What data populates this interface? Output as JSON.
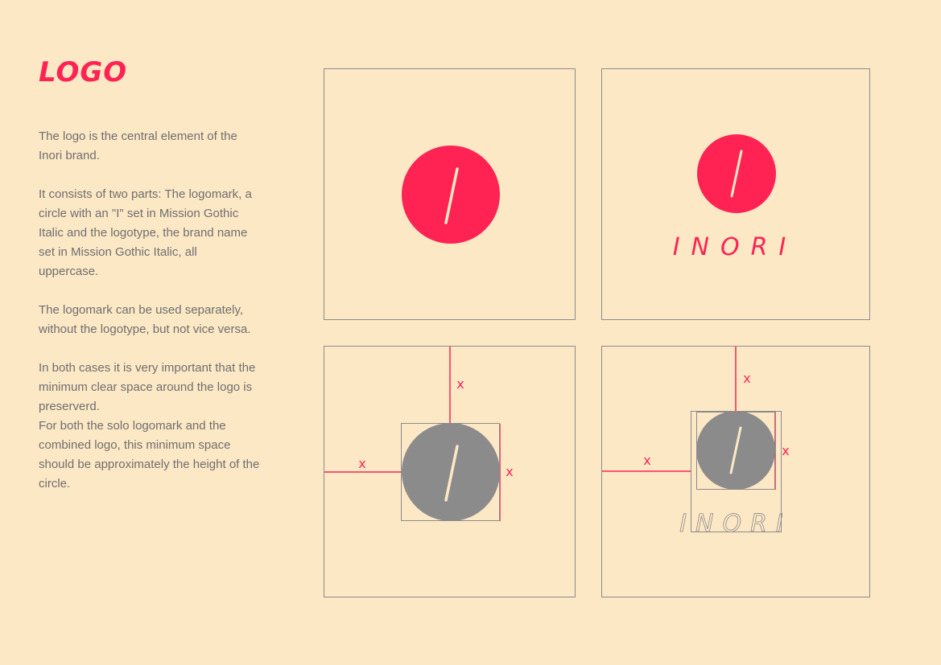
{
  "page": {
    "title": "LOGO",
    "paragraphs": [
      "The logo is the central element of the Inori brand.",
      "It consists of two parts: The logomark, a circle with an \"I\" set in Mission Gothic Italic and the logotype, the brand name set in Mission Gothic Italic, all uppercase.",
      "The logomark can be used separately, without the logotype, but not vice versa.",
      "In both cases it is very important that the minimum clear space around the logo is preserverd.",
      "For both the solo logomark and the combined logo, this minimum space should be approximately the height of the circle."
    ]
  },
  "logo": {
    "logotype": "INORI",
    "clearspace_label": "x"
  },
  "colors": {
    "background": "#fde8c6",
    "brand_red": "#ff2353",
    "grey": "#8b8b8b",
    "text": "#6e6e6e"
  }
}
